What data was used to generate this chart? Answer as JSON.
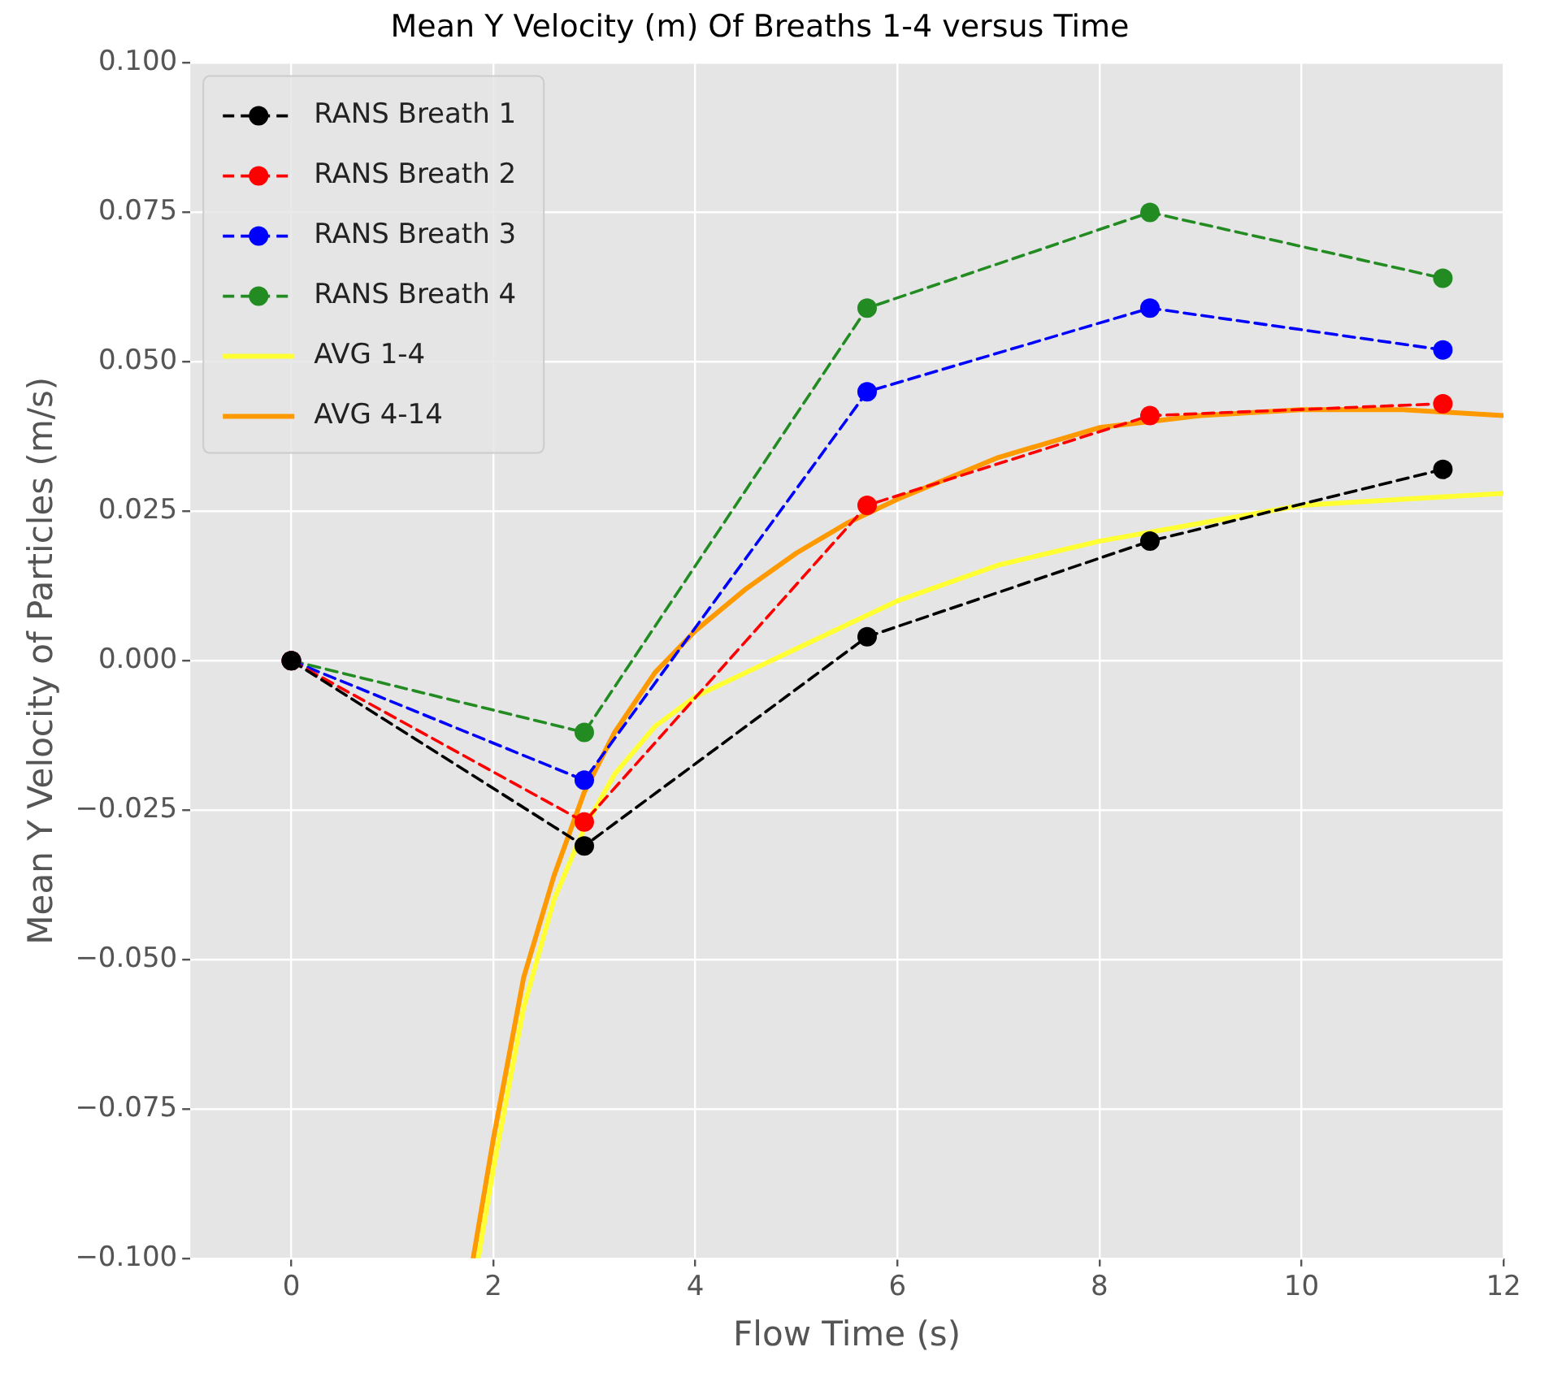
{
  "chart_data": {
    "type": "line",
    "title": "Mean Y Velocity (m) Of Breaths 1-4 versus Time",
    "xlabel": "Flow Time (s)",
    "ylabel": "Mean Y Velocity of Particles (m/s)",
    "xlim": [
      -1,
      12
    ],
    "xticks": [
      0,
      2,
      4,
      6,
      8,
      10,
      12
    ],
    "ylim": [
      -0.1,
      0.1
    ],
    "yticks": [
      {
        "value": -0.1,
        "label": "−0.100"
      },
      {
        "value": -0.075,
        "label": "−0.075"
      },
      {
        "value": -0.05,
        "label": "−0.050"
      },
      {
        "value": -0.025,
        "label": "−0.025"
      },
      {
        "value": 0,
        "label": "0.000"
      },
      {
        "value": 0.025,
        "label": "0.025"
      },
      {
        "value": 0.05,
        "label": "0.050"
      },
      {
        "value": 0.075,
        "label": "0.075"
      },
      {
        "value": 0.1,
        "label": "0.100"
      }
    ],
    "grid": true,
    "legend": "top left",
    "series": [
      {
        "name": "RANS Breath 1",
        "color": "#000000",
        "marker": "circle",
        "line_style": "dashed",
        "x": [
          0,
          2.9,
          5.7,
          8.5,
          11.4
        ],
        "values": [
          0,
          -0.031,
          0.004,
          0.02,
          0.032
        ]
      },
      {
        "name": "RANS Breath 2",
        "color": "#ff0000",
        "marker": "circle",
        "line_style": "dashed",
        "x": [
          0,
          2.9,
          5.7,
          8.5,
          11.4
        ],
        "values": [
          0,
          -0.027,
          0.026,
          0.041,
          0.043
        ]
      },
      {
        "name": "RANS Breath 3",
        "color": "#0000ff",
        "marker": "circle",
        "line_style": "dashed",
        "x": [
          0,
          2.9,
          5.7,
          8.5,
          11.4
        ],
        "values": [
          0,
          -0.02,
          0.045,
          0.059,
          0.052
        ]
      },
      {
        "name": "RANS Breath 4",
        "color": "#228b22",
        "marker": "circle",
        "line_style": "dashed",
        "x": [
          0,
          2.9,
          5.7,
          8.5,
          11.4
        ],
        "values": [
          0,
          -0.012,
          0.059,
          0.075,
          0.064
        ]
      },
      {
        "name": "AVG 1-4",
        "color": "#ffff33",
        "marker": "none",
        "line_style": "solid",
        "x": [
          1.85,
          2,
          2.3,
          2.6,
          2.9,
          3.2,
          3.6,
          4,
          4.5,
          5,
          5.5,
          6,
          7,
          8,
          9,
          10,
          11,
          12
        ],
        "values": [
          -0.1,
          -0.085,
          -0.058,
          -0.04,
          -0.028,
          -0.019,
          -0.011,
          -0.006,
          -0.002,
          0.002,
          0.006,
          0.01,
          0.016,
          0.02,
          0.023,
          0.026,
          0.027,
          0.028
        ]
      },
      {
        "name": "AVG 4-14",
        "color": "#ff9900",
        "marker": "none",
        "line_style": "solid",
        "x": [
          1.8,
          2,
          2.3,
          2.6,
          2.9,
          3.2,
          3.6,
          4,
          4.5,
          5,
          5.5,
          6,
          7,
          8,
          9,
          10,
          11,
          12
        ],
        "values": [
          -0.1,
          -0.08,
          -0.053,
          -0.036,
          -0.022,
          -0.012,
          -0.002,
          0.005,
          0.012,
          0.018,
          0.023,
          0.027,
          0.034,
          0.039,
          0.041,
          0.042,
          0.042,
          0.041
        ]
      }
    ]
  }
}
